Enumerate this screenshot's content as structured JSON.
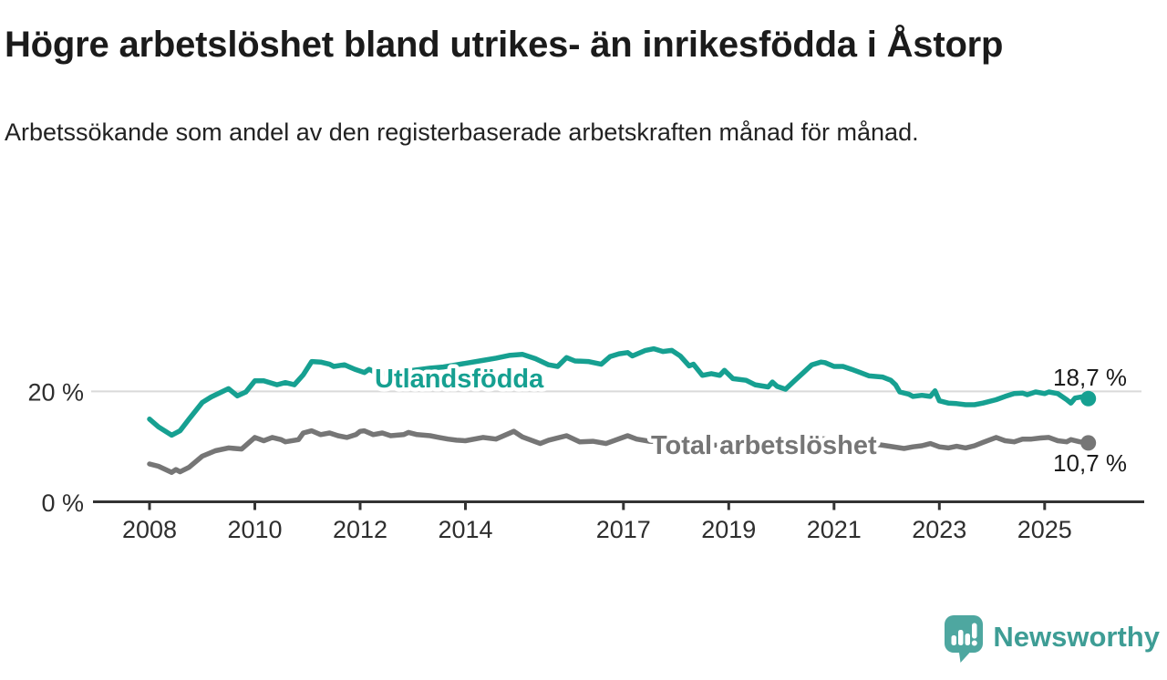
{
  "header": {
    "title": "Högre arbetslöshet bland utrikes- än inrikesfödda i Åstorp",
    "subtitle": "Arbetssökande som andel av den registerbaserade arbetskraften månad för månad."
  },
  "branding": {
    "name": "Newsworthy",
    "icon": "newsworthy-speech-bubble-bar-chart-icon",
    "icon_color": "#4EA7A0",
    "text_color": "#3E9D95"
  },
  "chart_data": {
    "type": "line",
    "unit": "%",
    "x_range": [
      2008.0,
      2025.83
    ],
    "ylim": [
      0,
      29
    ],
    "grid": "single-horizontal-line-at-20",
    "legend_position": "inline-labels-on-lines",
    "yticks": [
      {
        "value": 20,
        "label": "20 %"
      },
      {
        "value": 0,
        "label": "0 %"
      }
    ],
    "xticks": [
      {
        "year": 2008,
        "label": "2008"
      },
      {
        "year": 2010,
        "label": "2010"
      },
      {
        "year": 2012,
        "label": "2012"
      },
      {
        "year": 2014,
        "label": "2014"
      },
      {
        "year": 2017,
        "label": "2017"
      },
      {
        "year": 2019,
        "label": "2019"
      },
      {
        "year": 2021,
        "label": "2021"
      },
      {
        "year": 2023,
        "label": "2023"
      },
      {
        "year": 2025,
        "label": "2025"
      }
    ],
    "series": [
      {
        "name": "Utlandsfödda",
        "color": "#16A091",
        "end_value": 18.7,
        "end_label": "18,7 %",
        "points": [
          [
            2008.0,
            15.0
          ],
          [
            2008.17,
            13.6
          ],
          [
            2008.42,
            12.1
          ],
          [
            2008.58,
            12.9
          ],
          [
            2008.75,
            15.0
          ],
          [
            2009.0,
            18.0
          ],
          [
            2009.17,
            19.0
          ],
          [
            2009.5,
            20.5
          ],
          [
            2009.67,
            19.2
          ],
          [
            2009.83,
            19.9
          ],
          [
            2010.0,
            21.9
          ],
          [
            2010.17,
            21.9
          ],
          [
            2010.42,
            21.2
          ],
          [
            2010.58,
            21.6
          ],
          [
            2010.75,
            21.2
          ],
          [
            2010.92,
            23.0
          ],
          [
            2011.08,
            25.4
          ],
          [
            2011.25,
            25.3
          ],
          [
            2011.42,
            24.9
          ],
          [
            2011.5,
            24.5
          ],
          [
            2011.7,
            24.8
          ],
          [
            2011.9,
            24.0
          ],
          [
            2012.08,
            23.4
          ],
          [
            2012.17,
            24.0
          ],
          [
            2012.33,
            23.2
          ],
          [
            2012.58,
            23.2
          ],
          [
            2012.83,
            23.6
          ],
          [
            2013.08,
            23.9
          ],
          [
            2013.33,
            24.2
          ],
          [
            2013.58,
            24.4
          ],
          [
            2013.83,
            24.8
          ],
          [
            2014.08,
            25.2
          ],
          [
            2014.33,
            25.6
          ],
          [
            2014.58,
            26.0
          ],
          [
            2014.83,
            26.5
          ],
          [
            2015.08,
            26.7
          ],
          [
            2015.33,
            25.9
          ],
          [
            2015.58,
            24.8
          ],
          [
            2015.75,
            24.5
          ],
          [
            2015.92,
            26.1
          ],
          [
            2016.08,
            25.5
          ],
          [
            2016.33,
            25.4
          ],
          [
            2016.58,
            24.9
          ],
          [
            2016.75,
            26.3
          ],
          [
            2016.92,
            26.8
          ],
          [
            2017.08,
            27.0
          ],
          [
            2017.17,
            26.4
          ],
          [
            2017.42,
            27.4
          ],
          [
            2017.58,
            27.7
          ],
          [
            2017.75,
            27.2
          ],
          [
            2017.92,
            27.4
          ],
          [
            2018.08,
            26.4
          ],
          [
            2018.25,
            24.6
          ],
          [
            2018.33,
            24.9
          ],
          [
            2018.5,
            22.9
          ],
          [
            2018.67,
            23.2
          ],
          [
            2018.83,
            22.9
          ],
          [
            2018.92,
            23.8
          ],
          [
            2019.08,
            22.3
          ],
          [
            2019.33,
            22.0
          ],
          [
            2019.5,
            21.2
          ],
          [
            2019.75,
            20.8
          ],
          [
            2019.83,
            21.7
          ],
          [
            2019.92,
            20.9
          ],
          [
            2020.08,
            20.4
          ],
          [
            2020.25,
            21.9
          ],
          [
            2020.42,
            23.4
          ],
          [
            2020.58,
            24.8
          ],
          [
            2020.75,
            25.3
          ],
          [
            2020.83,
            25.2
          ],
          [
            2021.0,
            24.5
          ],
          [
            2021.17,
            24.5
          ],
          [
            2021.33,
            24.0
          ],
          [
            2021.5,
            23.4
          ],
          [
            2021.67,
            22.8
          ],
          [
            2021.92,
            22.6
          ],
          [
            2022.08,
            22.0
          ],
          [
            2022.17,
            21.2
          ],
          [
            2022.25,
            19.9
          ],
          [
            2022.42,
            19.5
          ],
          [
            2022.5,
            19.1
          ],
          [
            2022.67,
            19.3
          ],
          [
            2022.83,
            19.1
          ],
          [
            2022.92,
            20.1
          ],
          [
            2023.0,
            18.3
          ],
          [
            2023.17,
            17.9
          ],
          [
            2023.33,
            17.8
          ],
          [
            2023.5,
            17.6
          ],
          [
            2023.67,
            17.6
          ],
          [
            2023.83,
            17.9
          ],
          [
            2024.08,
            18.5
          ],
          [
            2024.25,
            19.1
          ],
          [
            2024.42,
            19.6
          ],
          [
            2024.58,
            19.7
          ],
          [
            2024.67,
            19.4
          ],
          [
            2024.83,
            19.9
          ],
          [
            2025.0,
            19.6
          ],
          [
            2025.08,
            19.9
          ],
          [
            2025.25,
            19.6
          ],
          [
            2025.42,
            18.5
          ],
          [
            2025.5,
            17.9
          ],
          [
            2025.58,
            18.8
          ],
          [
            2025.75,
            19.1
          ],
          [
            2025.83,
            18.7
          ]
        ]
      },
      {
        "name": "Total arbetslöshet",
        "color": "#767676",
        "end_value": 10.7,
        "end_label": "10,7 %",
        "points": [
          [
            2008.0,
            6.9
          ],
          [
            2008.17,
            6.5
          ],
          [
            2008.42,
            5.4
          ],
          [
            2008.5,
            5.9
          ],
          [
            2008.58,
            5.5
          ],
          [
            2008.75,
            6.3
          ],
          [
            2009.0,
            8.3
          ],
          [
            2009.25,
            9.3
          ],
          [
            2009.5,
            9.8
          ],
          [
            2009.75,
            9.6
          ],
          [
            2010.0,
            11.7
          ],
          [
            2010.17,
            11.1
          ],
          [
            2010.33,
            11.7
          ],
          [
            2010.5,
            11.3
          ],
          [
            2010.58,
            10.9
          ],
          [
            2010.83,
            11.3
          ],
          [
            2010.92,
            12.5
          ],
          [
            2011.08,
            12.9
          ],
          [
            2011.25,
            12.2
          ],
          [
            2011.42,
            12.5
          ],
          [
            2011.58,
            12.0
          ],
          [
            2011.75,
            11.7
          ],
          [
            2011.92,
            12.2
          ],
          [
            2012.0,
            12.8
          ],
          [
            2012.08,
            12.9
          ],
          [
            2012.25,
            12.2
          ],
          [
            2012.42,
            12.5
          ],
          [
            2012.58,
            12.0
          ],
          [
            2012.83,
            12.2
          ],
          [
            2012.92,
            12.6
          ],
          [
            2013.08,
            12.2
          ],
          [
            2013.33,
            12.0
          ],
          [
            2013.5,
            11.7
          ],
          [
            2013.67,
            11.4
          ],
          [
            2013.83,
            11.2
          ],
          [
            2014.0,
            11.1
          ],
          [
            2014.33,
            11.7
          ],
          [
            2014.58,
            11.4
          ],
          [
            2014.92,
            12.8
          ],
          [
            2015.08,
            11.8
          ],
          [
            2015.42,
            10.6
          ],
          [
            2015.58,
            11.2
          ],
          [
            2015.92,
            12.0
          ],
          [
            2016.17,
            10.9
          ],
          [
            2016.42,
            11.0
          ],
          [
            2016.67,
            10.6
          ],
          [
            2017.08,
            12.0
          ],
          [
            2017.25,
            11.4
          ],
          [
            2017.5,
            11.0
          ],
          [
            2017.92,
            10.8
          ],
          [
            2018.33,
            10.5
          ],
          [
            2018.75,
            10.3
          ],
          [
            2019.17,
            10.1
          ],
          [
            2019.58,
            10.0
          ],
          [
            2020.0,
            10.2
          ],
          [
            2020.42,
            11.2
          ],
          [
            2020.67,
            11.6
          ],
          [
            2021.0,
            11.2
          ],
          [
            2021.5,
            10.8
          ],
          [
            2021.92,
            10.3
          ],
          [
            2022.33,
            9.7
          ],
          [
            2022.5,
            10.0
          ],
          [
            2022.67,
            10.2
          ],
          [
            2022.83,
            10.6
          ],
          [
            2023.0,
            10.0
          ],
          [
            2023.17,
            9.8
          ],
          [
            2023.33,
            10.1
          ],
          [
            2023.5,
            9.8
          ],
          [
            2023.67,
            10.2
          ],
          [
            2023.83,
            10.8
          ],
          [
            2024.08,
            11.7
          ],
          [
            2024.25,
            11.1
          ],
          [
            2024.42,
            10.9
          ],
          [
            2024.58,
            11.4
          ],
          [
            2024.75,
            11.4
          ],
          [
            2024.92,
            11.6
          ],
          [
            2025.08,
            11.7
          ],
          [
            2025.25,
            11.1
          ],
          [
            2025.42,
            10.9
          ],
          [
            2025.5,
            11.3
          ],
          [
            2025.67,
            10.9
          ],
          [
            2025.83,
            10.7
          ]
        ]
      }
    ]
  }
}
